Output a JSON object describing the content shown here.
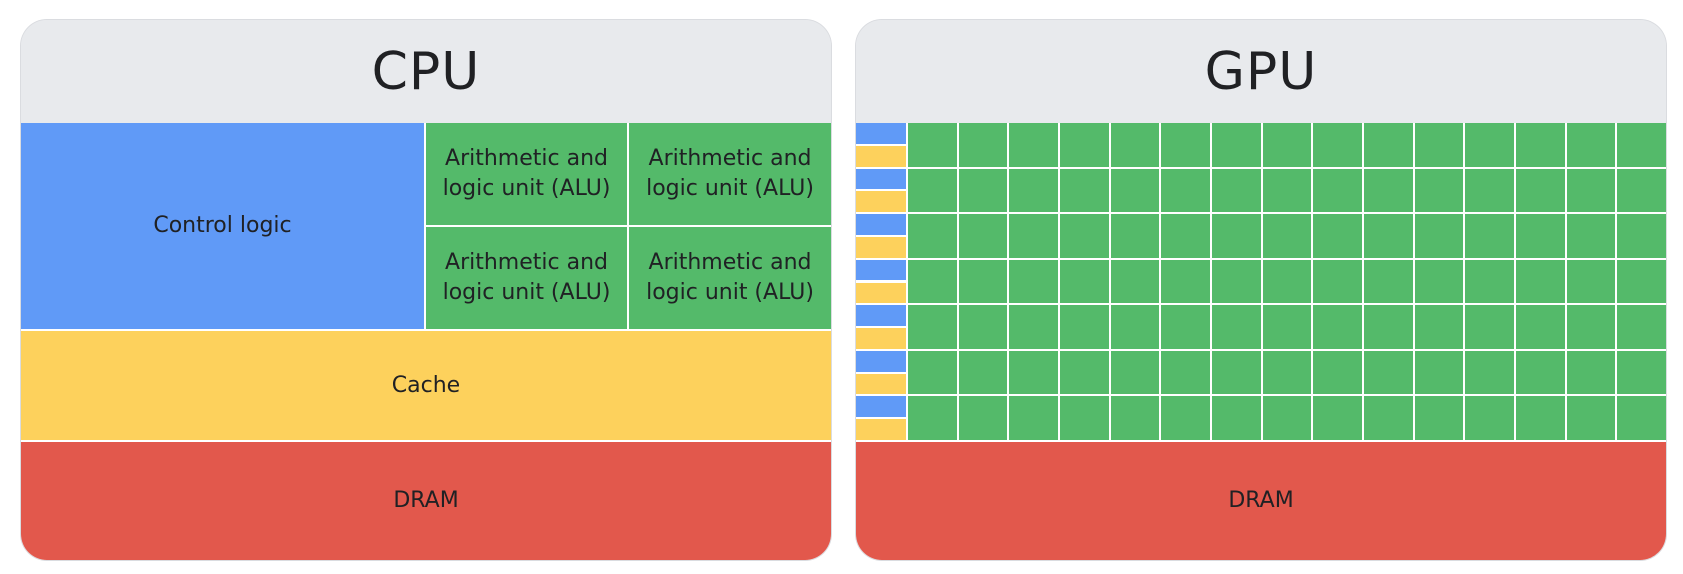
{
  "cpu": {
    "title": "CPU",
    "control_logic_label": "Control logic",
    "alus": [
      {
        "label": "Arithmetic and logic unit (ALU)"
      },
      {
        "label": "Arithmetic and logic unit (ALU)"
      },
      {
        "label": "Arithmetic and logic unit (ALU)"
      },
      {
        "label": "Arithmetic and logic unit (ALU)"
      }
    ],
    "cache_label": "Cache",
    "dram_label": "DRAM"
  },
  "gpu": {
    "title": "GPU",
    "dram_label": "DRAM",
    "core_rows": 7,
    "core_columns": 15,
    "control_cache_pairs": 7
  },
  "colors": {
    "control_logic": "#609af7",
    "alu": "#54ba6a",
    "cache": "#fdd15c",
    "dram": "#e2584c",
    "header": "#e8eaed",
    "text": "#202124"
  }
}
